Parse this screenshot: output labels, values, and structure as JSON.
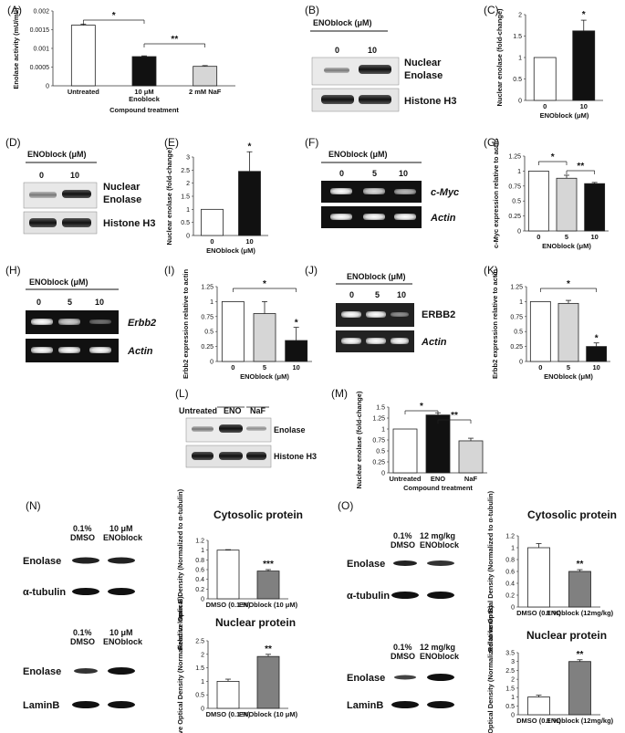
{
  "panel_labels": [
    "(A)",
    "(B)",
    "(C)",
    "(D)",
    "(E)",
    "(F)",
    "(G)",
    "(H)",
    "(I)",
    "(J)",
    "(K)",
    "(L)",
    "(M)",
    "(N)",
    "(O)"
  ],
  "blot_text": {
    "enoblock_um": "ENOblock (μM)",
    "nuclear": "Nuclear",
    "enolase": "Enolase",
    "histone": "Histone H3",
    "zero": "0",
    "five": "5",
    "ten": "10",
    "cmyc": "c-Myc",
    "actin": "Actin",
    "erbb2_it": "Erbb2",
    "erbb2_caps": "ERBB2",
    "untreated": "Untreated",
    "eno": "ENO",
    "naf": "NaF",
    "dmso_pct": "0.1%",
    "dmso": "DMSO",
    "ten_um": "10 μM",
    "enoblock_word": "ENOblock",
    "mgkg": "12 mg/kg",
    "alpha_tubulin": "α-tubulin",
    "laminb": "LaminB",
    "cytosolic": "Cytosolic protein",
    "nuclear_protein": "Nuclear protein"
  },
  "chart_data": [
    {
      "id": "A",
      "type": "bar",
      "ylabel": "Enolase activity (mU/mL)",
      "ylim": [
        0,
        0.002
      ],
      "yticks": [
        "0",
        "0.0005",
        "0.001",
        "0.0015",
        "0.002"
      ],
      "categories": [
        "Untreated",
        "10 μM Enoblock",
        "2 mM NaF"
      ],
      "xlabel": "Compound treatment",
      "values": [
        0.00162,
        0.00078,
        0.00052
      ],
      "errors": [
        3e-05,
        2e-05,
        2e-05
      ],
      "colors": [
        "#ffffff",
        "#111111",
        "#d6d6d6"
      ],
      "sig": [
        "*",
        "**"
      ]
    },
    {
      "id": "C",
      "type": "bar",
      "ylabel": "Nuclear enolase (fold-change)",
      "ylim": [
        0,
        2
      ],
      "yticks": [
        "0",
        "0.5",
        "1",
        "1.5",
        "2"
      ],
      "categories": [
        "0",
        "10"
      ],
      "xlabel": "ENOblock (μM)",
      "values": [
        1.0,
        1.62
      ],
      "errors": [
        0,
        0.25
      ],
      "colors": [
        "#ffffff",
        "#111111"
      ],
      "sig": [
        "*"
      ]
    },
    {
      "id": "E",
      "type": "bar",
      "ylabel": "Nuclear enolase (fold-change)",
      "ylim": [
        0,
        3
      ],
      "yticks": [
        "0",
        "0.5",
        "1",
        "1.5",
        "2",
        "2.5",
        "3"
      ],
      "categories": [
        "0",
        "10"
      ],
      "xlabel": "ENOblock (μM)",
      "values": [
        1.0,
        2.45
      ],
      "errors": [
        0,
        0.75
      ],
      "colors": [
        "#ffffff",
        "#111111"
      ],
      "sig": [
        "*"
      ]
    },
    {
      "id": "G",
      "type": "bar",
      "ylabel": "c-Myc expression relative to actin",
      "ylim": [
        0,
        1.25
      ],
      "yticks": [
        "0",
        "0.25",
        "0.5",
        "0.75",
        "1",
        "1.25"
      ],
      "categories": [
        "0",
        "5",
        "10"
      ],
      "xlabel": "ENOblock (μM)",
      "values": [
        1.0,
        0.88,
        0.79
      ],
      "errors": [
        0,
        0.05,
        0.02
      ],
      "colors": [
        "#ffffff",
        "#d6d6d6",
        "#111111"
      ],
      "sig": [
        "*",
        "**"
      ]
    },
    {
      "id": "I",
      "type": "bar",
      "ylabel": "Erbb2 expression relative to actin",
      "ylim": [
        0,
        1.25
      ],
      "yticks": [
        "0",
        "0.25",
        "0.5",
        "0.75",
        "1",
        "1.25"
      ],
      "categories": [
        "0",
        "5",
        "10"
      ],
      "xlabel": "ENOblock (μM)",
      "values": [
        1.0,
        0.8,
        0.35
      ],
      "errors": [
        0,
        0.2,
        0.22
      ],
      "colors": [
        "#ffffff",
        "#d6d6d6",
        "#111111"
      ],
      "sig": [
        "*",
        "*"
      ]
    },
    {
      "id": "K",
      "type": "bar",
      "ylabel": "Erbb2 expression relative to actin",
      "ylim": [
        0,
        1.25
      ],
      "yticks": [
        "0",
        "0.25",
        "0.5",
        "0.75",
        "1",
        "1.25"
      ],
      "categories": [
        "0",
        "5",
        "10"
      ],
      "xlabel": "ENOblock (μM)",
      "values": [
        1.0,
        0.97,
        0.25
      ],
      "errors": [
        0,
        0.05,
        0.06
      ],
      "colors": [
        "#ffffff",
        "#d6d6d6",
        "#111111"
      ],
      "sig": [
        "*",
        "*"
      ]
    },
    {
      "id": "M",
      "type": "bar",
      "ylabel": "Nuclear enolase (fold-change)",
      "ylim": [
        0,
        1.5
      ],
      "yticks": [
        "0",
        "0.25",
        "0.5",
        "0.75",
        "1",
        "1.25",
        "1.5"
      ],
      "categories": [
        "Untreated",
        "ENO",
        "NaF"
      ],
      "xlabel": "Compound treatment",
      "values": [
        1.0,
        1.32,
        0.73
      ],
      "errors": [
        0,
        0.05,
        0.06
      ],
      "colors": [
        "#ffffff",
        "#111111",
        "#d6d6d6"
      ],
      "sig": [
        "*",
        "**"
      ]
    },
    {
      "id": "N1",
      "type": "bar",
      "ylabel": "Relative Optical Density (Normalized to α-tubulin)",
      "ylim": [
        0,
        1.2
      ],
      "yticks": [
        "0",
        "0.2",
        "0.4",
        "0.6",
        "0.8",
        "1",
        "1.2"
      ],
      "categories": [
        "DMSO (0.1 %)",
        "ENOblock (10 μM)"
      ],
      "values": [
        1.0,
        0.57
      ],
      "errors": [
        0.01,
        0.03
      ],
      "colors": [
        "#ffffff",
        "#808080"
      ],
      "sig": [
        "***"
      ]
    },
    {
      "id": "N2",
      "type": "bar",
      "ylabel": "Relative Optical Density (Normalized to lamin B)",
      "ylim": [
        0,
        2.5
      ],
      "yticks": [
        "0",
        "0.5",
        "1",
        "1.5",
        "2",
        "2.5"
      ],
      "categories": [
        "DMSO (0.1 %)",
        "ENOblock (10 μM)"
      ],
      "values": [
        1.0,
        1.92
      ],
      "errors": [
        0.08,
        0.08
      ],
      "colors": [
        "#ffffff",
        "#808080"
      ],
      "sig": [
        "**"
      ]
    },
    {
      "id": "O1",
      "type": "bar",
      "ylabel": "Relative Optical Density (Normalized to α-tubulin)",
      "ylim": [
        0,
        1.2
      ],
      "yticks": [
        "0",
        "0.2",
        "0.4",
        "0.6",
        "0.8",
        "1",
        "1.2"
      ],
      "categories": [
        "DMSO (0.1 %)",
        "ENOblock (12mg/kg)"
      ],
      "values": [
        1.0,
        0.6
      ],
      "errors": [
        0.07,
        0.03
      ],
      "colors": [
        "#ffffff",
        "#808080"
      ],
      "sig": [
        "**"
      ]
    },
    {
      "id": "O2",
      "type": "bar",
      "ylabel": "Relative Optical Density (Normalized to lamin B)",
      "ylim": [
        0,
        3.5
      ],
      "yticks": [
        "0",
        "0.5",
        "1",
        "1.5",
        "2",
        "2.5",
        "3",
        "3.5"
      ],
      "categories": [
        "DMSO (0.1 %)",
        "ENOblock (12mg/kg)"
      ],
      "values": [
        1.0,
        3.0
      ],
      "errors": [
        0.1,
        0.1
      ],
      "colors": [
        "#ffffff",
        "#808080"
      ],
      "sig": [
        "**"
      ]
    }
  ]
}
